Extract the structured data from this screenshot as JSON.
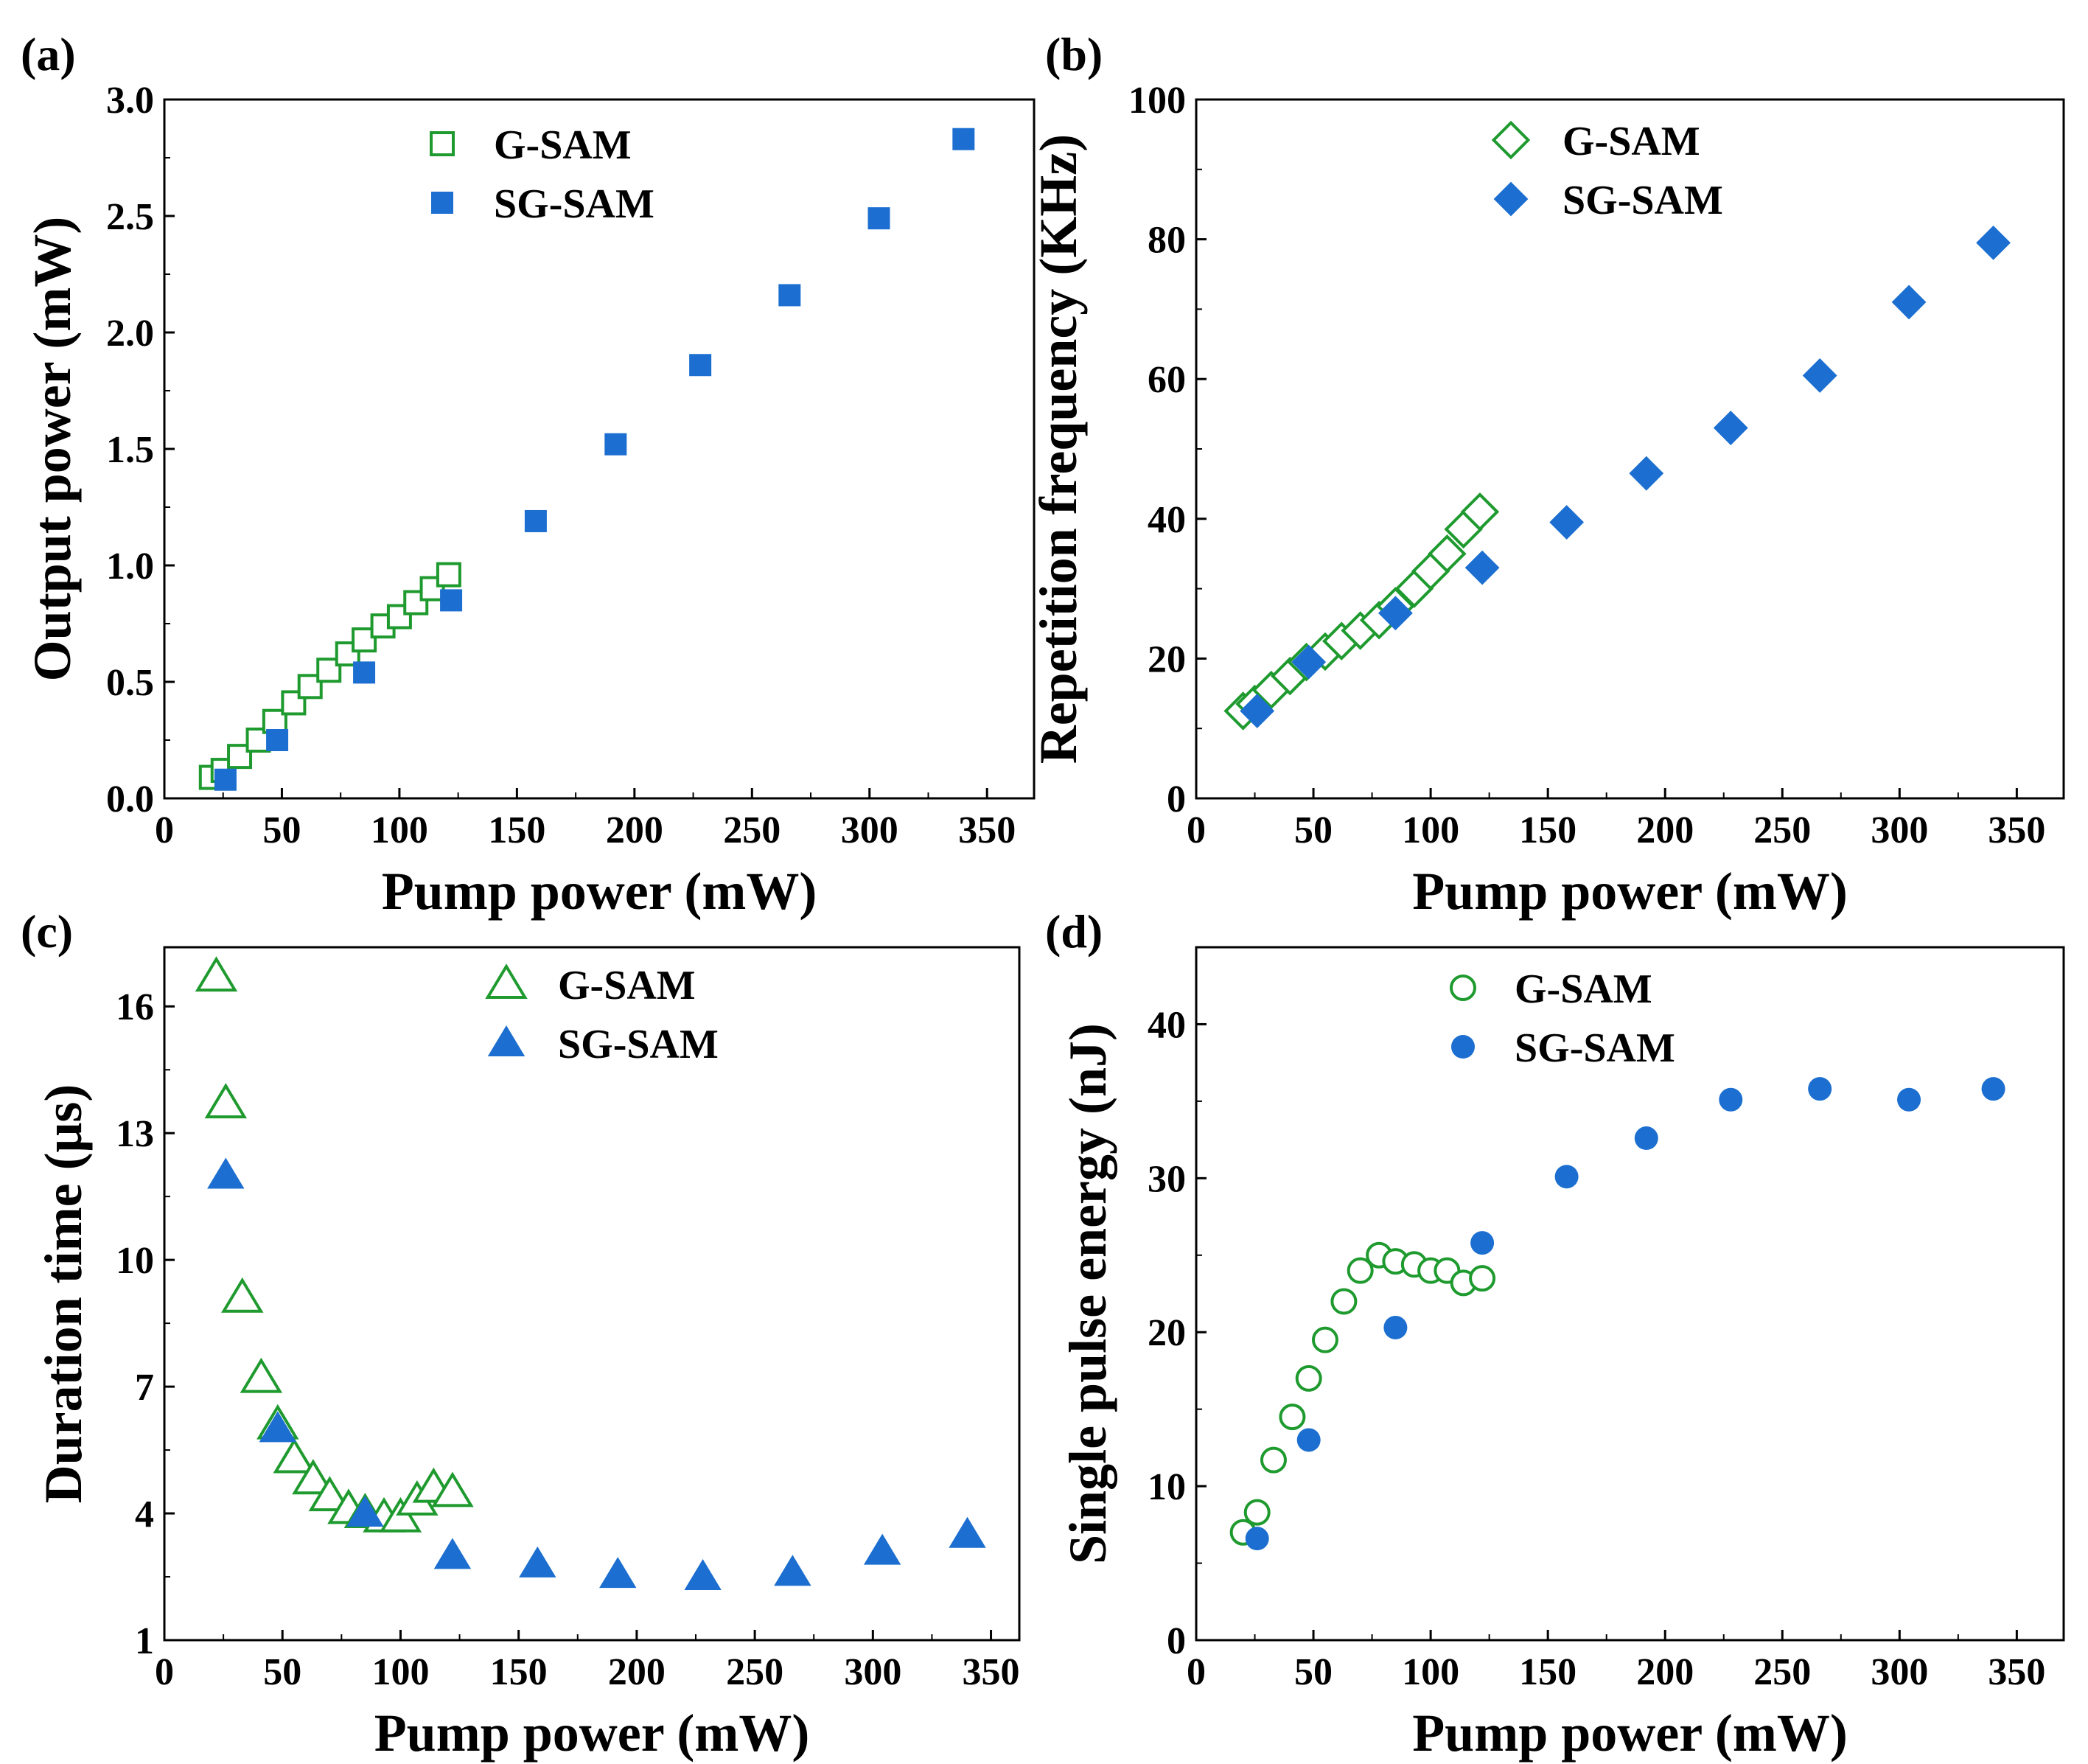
{
  "figure": {
    "colors": {
      "g_sam": "#1e9a2e",
      "sg_sam": "#1c6fd0",
      "axis": "#000000"
    }
  },
  "chart_data": [
    {
      "id": "a",
      "type": "scatter",
      "panel_label": "(a)",
      "xlabel": "Pump power (mW)",
      "ylabel": "Output power (mW)",
      "xlim": [
        0,
        370
      ],
      "ylim": [
        0,
        3.0
      ],
      "xticks": [
        0,
        50,
        100,
        150,
        200,
        250,
        300,
        350
      ],
      "yticks": [
        0.0,
        0.5,
        1.0,
        1.5,
        2.0,
        2.5,
        3.0
      ],
      "xtick_labels": [
        "0",
        "50",
        "100",
        "150",
        "200",
        "250",
        "300",
        "350"
      ],
      "ytick_labels": [
        "0.0",
        "0.5",
        "1.0",
        "1.5",
        "2.0",
        "2.5",
        "3.0"
      ],
      "legend_position": "top-center",
      "series": [
        {
          "name": "G-SAM",
          "marker": "square",
          "filled": false,
          "x": [
            20,
            25,
            32,
            40,
            47,
            55,
            62,
            70,
            78,
            85,
            93,
            100,
            107,
            114,
            121
          ],
          "y": [
            0.09,
            0.12,
            0.18,
            0.25,
            0.33,
            0.41,
            0.48,
            0.55,
            0.62,
            0.68,
            0.74,
            0.78,
            0.84,
            0.9,
            0.96
          ]
        },
        {
          "name": "SG-SAM",
          "marker": "square",
          "filled": true,
          "x": [
            26,
            48,
            85,
            122,
            158,
            192,
            228,
            266,
            304,
            340
          ],
          "y": [
            0.08,
            0.25,
            0.54,
            0.85,
            1.19,
            1.52,
            1.86,
            2.16,
            2.49,
            2.83
          ]
        }
      ]
    },
    {
      "id": "b",
      "type": "scatter",
      "panel_label": "(b)",
      "xlabel": "Pump power (mW)",
      "ylabel": "Repetition frequency (KHz)",
      "xlim": [
        0,
        370
      ],
      "ylim": [
        0,
        100
      ],
      "xticks": [
        0,
        50,
        100,
        150,
        200,
        250,
        300,
        350
      ],
      "yticks": [
        0,
        20,
        40,
        60,
        80,
        100
      ],
      "xtick_labels": [
        "0",
        "50",
        "100",
        "150",
        "200",
        "250",
        "300",
        "350"
      ],
      "ytick_labels": [
        "0",
        "20",
        "40",
        "60",
        "80",
        "100"
      ],
      "legend_position": "top-center",
      "series": [
        {
          "name": "G-SAM",
          "marker": "diamond",
          "filled": false,
          "x": [
            20,
            25,
            32,
            40,
            47,
            55,
            62,
            70,
            78,
            85,
            93,
            100,
            107,
            114,
            121
          ],
          "y": [
            12.5,
            13.5,
            15.5,
            17.5,
            19.5,
            21,
            22.5,
            24,
            25.5,
            27.5,
            30,
            32.5,
            35,
            38.5,
            41
          ]
        },
        {
          "name": "SG-SAM",
          "marker": "diamond",
          "filled": true,
          "x": [
            26,
            48,
            85,
            122,
            158,
            192,
            228,
            266,
            304,
            340
          ],
          "y": [
            12.5,
            19.5,
            26.5,
            33,
            39.5,
            46.5,
            53,
            60.5,
            71,
            79.5
          ]
        }
      ]
    },
    {
      "id": "c",
      "type": "scatter",
      "panel_label": "(c)",
      "xlabel": "Pump power (mW)",
      "ylabel": "Duration time (μs)",
      "xlim": [
        0,
        362
      ],
      "ylim": [
        1,
        17.4
      ],
      "xticks": [
        0,
        50,
        100,
        150,
        200,
        250,
        300,
        350
      ],
      "yticks": [
        1,
        4,
        7,
        10,
        13,
        16
      ],
      "xtick_labels": [
        "0",
        "50",
        "100",
        "150",
        "200",
        "250",
        "300",
        "350"
      ],
      "ytick_labels": [
        "1",
        "4",
        "7",
        "10",
        "13",
        "16"
      ],
      "legend_position": "top-center",
      "series": [
        {
          "name": "G-SAM",
          "marker": "triangle",
          "filled": false,
          "x": [
            22,
            26,
            33,
            41,
            48,
            55,
            63,
            70,
            78,
            85,
            93,
            100,
            107,
            114,
            122
          ],
          "y": [
            16.7,
            13.7,
            9.1,
            7.2,
            6.1,
            5.3,
            4.8,
            4.4,
            4.1,
            4.0,
            3.9,
            3.9,
            4.3,
            4.6,
            4.5
          ]
        },
        {
          "name": "SG-SAM",
          "marker": "triangle",
          "filled": true,
          "x": [
            26,
            48,
            85,
            122,
            158,
            192,
            228,
            266,
            304,
            340
          ],
          "y": [
            12.0,
            6.0,
            4.0,
            3.0,
            2.8,
            2.55,
            2.5,
            2.6,
            3.1,
            3.5
          ]
        }
      ]
    },
    {
      "id": "d",
      "type": "scatter",
      "panel_label": "(d)",
      "xlabel": "Pump power (mW)",
      "ylabel": "Single pulse energy (nJ)",
      "xlim": [
        0,
        370
      ],
      "ylim": [
        0,
        45
      ],
      "xticks": [
        0,
        50,
        100,
        150,
        200,
        250,
        300,
        350
      ],
      "yticks": [
        0,
        10,
        20,
        30,
        40
      ],
      "xtick_labels": [
        "0",
        "50",
        "100",
        "150",
        "200",
        "250",
        "300",
        "350"
      ],
      "ytick_labels": [
        "0",
        "10",
        "20",
        "30",
        "40"
      ],
      "legend_position": "top-center",
      "series": [
        {
          "name": "G-SAM",
          "marker": "circle",
          "filled": false,
          "x": [
            20,
            26,
            33,
            41,
            48,
            55,
            63,
            70,
            78,
            85,
            93,
            100,
            107,
            114,
            122
          ],
          "y": [
            7.0,
            8.3,
            11.7,
            14.5,
            17.0,
            19.5,
            22.0,
            24.0,
            25.0,
            24.6,
            24.4,
            24.0,
            24.0,
            23.2,
            23.5
          ]
        },
        {
          "name": "SG-SAM",
          "marker": "circle",
          "filled": true,
          "x": [
            26,
            48,
            85,
            122,
            158,
            192,
            228,
            266,
            304,
            340
          ],
          "y": [
            6.6,
            13.0,
            20.3,
            25.8,
            30.1,
            32.6,
            35.1,
            35.8,
            35.1,
            35.8
          ]
        }
      ]
    }
  ]
}
